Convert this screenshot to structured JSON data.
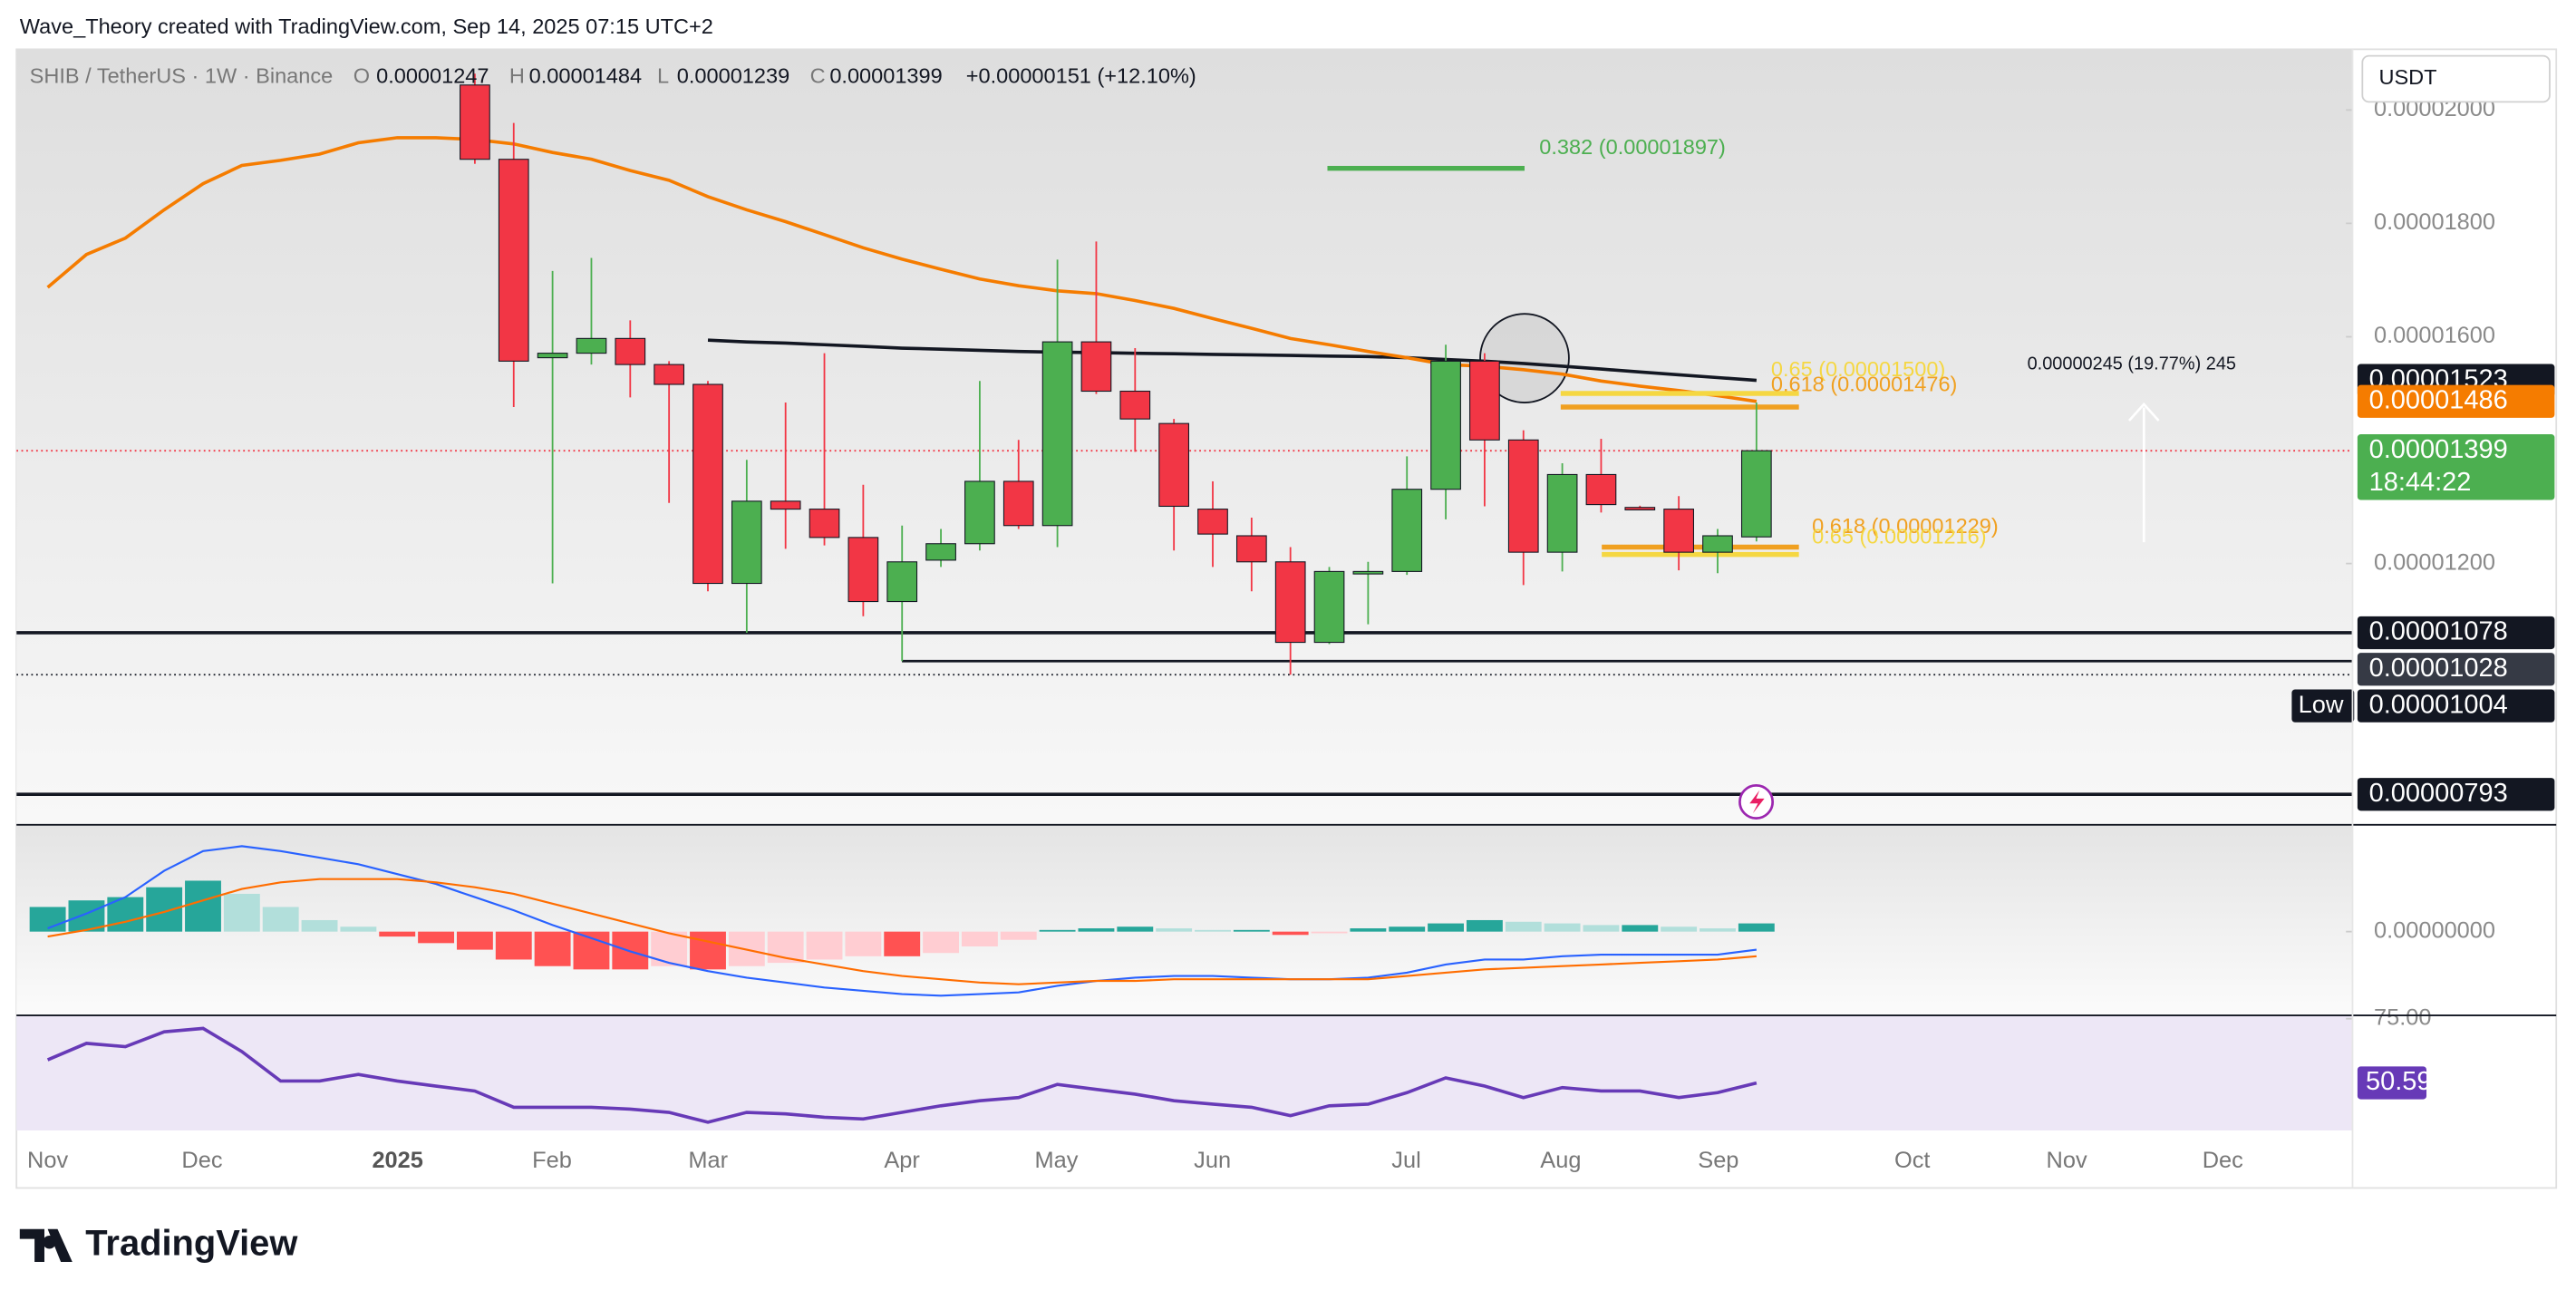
{
  "header": {
    "credit": "Wave_Theory created with TradingView.com, Sep 14, 2025 07:15 UTC+2",
    "currency": "USDT",
    "logo": "TradingView"
  },
  "chart_data": [
    {
      "type": "candlestick",
      "title": "SHIB / TetherUS · 1W · Binance",
      "ohlc_keys": [
        "O",
        "H",
        "L",
        "C"
      ],
      "change": "+0.00000151 (+12.10%)",
      "up_color": "#4caf50",
      "down_color": "#f23645",
      "open": [
        null,
        null,
        null,
        null,
        null,
        null,
        null,
        null,
        null,
        null,
        null,
        2.044e-05,
        1.913e-05,
        1.563e-05,
        1.571e-05,
        1.597e-05,
        1.551e-05,
        1.516e-05,
        1.165e-05,
        1.31e-05,
        1.296e-05,
        1.246e-05,
        1.133e-05,
        1.206e-05,
        1.235e-05,
        1.345e-05,
        1.267e-05,
        1.591e-05,
        1.504e-05,
        1.447e-05,
        1.296e-05,
        1.249e-05,
        1.203e-05,
        1.061e-05,
        1.183e-05,
        1.186e-05,
        1.331e-05,
        1.557e-05,
        1.418e-05,
        1.22e-05,
        1.357e-05,
        1.299e-05,
        1.296e-05,
        1.22e-05,
        1.247e-05
      ],
      "high": [
        null,
        null,
        null,
        null,
        null,
        null,
        null,
        null,
        null,
        null,
        null,
        2.064e-05,
        1.977e-05,
        1.716e-05,
        1.739e-05,
        1.629e-05,
        1.557e-05,
        1.522e-05,
        1.383e-05,
        1.484e-05,
        1.571e-05,
        1.339e-05,
        1.267e-05,
        1.261e-05,
        1.522e-05,
        1.418e-05,
        1.736e-05,
        1.768e-05,
        1.58e-05,
        1.455e-05,
        1.345e-05,
        1.281e-05,
        1.229e-05,
        1.194e-05,
        1.203e-05,
        1.389e-05,
        1.586e-05,
        1.571e-05,
        1.435e-05,
        1.377e-05,
        1.42e-05,
        1.302e-05,
        1.319e-05,
        1.261e-05,
        1.484e-05
      ],
      "low": [
        null,
        null,
        null,
        null,
        null,
        null,
        null,
        null,
        null,
        null,
        null,
        1.905e-05,
        1.476e-05,
        1.165e-05,
        1.551e-05,
        1.493e-05,
        1.307e-05,
        1.151e-05,
        1.078e-05,
        1.226e-05,
        1.232e-05,
        1.107e-05,
        1.028e-05,
        1.194e-05,
        1.223e-05,
        1.261e-05,
        1.229e-05,
        1.499e-05,
        1.397e-05,
        1.223e-05,
        1.194e-05,
        1.151e-05,
        1.004e-05,
        1.058e-05,
        1.093e-05,
        1.18e-05,
        1.278e-05,
        1.301e-05,
        1.162e-05,
        1.186e-05,
        1.29e-05,
        1.296e-05,
        1.188e-05,
        1.183e-05,
        1.239e-05
      ],
      "close": [
        null,
        null,
        null,
        null,
        null,
        null,
        null,
        null,
        null,
        null,
        null,
        1.913e-05,
        1.557e-05,
        1.571e-05,
        1.597e-05,
        1.551e-05,
        1.516e-05,
        1.165e-05,
        1.31e-05,
        1.296e-05,
        1.246e-05,
        1.133e-05,
        1.203e-05,
        1.235e-05,
        1.345e-05,
        1.267e-05,
        1.591e-05,
        1.504e-05,
        1.455e-05,
        1.301e-05,
        1.252e-05,
        1.203e-05,
        1.061e-05,
        1.186e-05,
        1.186e-05,
        1.331e-05,
        1.557e-05,
        1.418e-05,
        1.22e-05,
        1.357e-05,
        1.304e-05,
        1.297e-05,
        1.22e-05,
        1.249e-05,
        1.399e-05
      ],
      "ema": {
        "color": "#f57c00",
        "values": [
          1.687e-05,
          1.745e-05,
          1.774e-05,
          1.824e-05,
          1.87e-05,
          1.902e-05,
          1.911e-05,
          1.922e-05,
          1.942e-05,
          1.951e-05,
          1.951e-05,
          1.948e-05,
          1.94e-05,
          1.925e-05,
          1.913e-05,
          1.893e-05,
          1.876e-05,
          1.847e-05,
          1.824e-05,
          1.803e-05,
          1.78e-05,
          1.757e-05,
          1.737e-05,
          1.719e-05,
          1.702e-05,
          1.69e-05,
          1.681e-05,
          1.676e-05,
          1.664e-05,
          1.65e-05,
          1.632e-05,
          1.615e-05,
          1.597e-05,
          1.586e-05,
          1.574e-05,
          1.563e-05,
          1.551e-05,
          1.548e-05,
          1.542e-05,
          1.534e-05,
          1.522e-05,
          1.513e-05,
          1.505e-05,
          1.496e-05,
          1.486e-05
        ]
      },
      "ma": {
        "color": "#131722",
        "values": [
          null,
          null,
          null,
          null,
          null,
          null,
          null,
          null,
          null,
          null,
          null,
          null,
          null,
          null,
          null,
          null,
          null,
          1.594e-05,
          1.591e-05,
          1.589e-05,
          1.586e-05,
          1.583e-05,
          1.58e-05,
          1.578e-05,
          1.576e-05,
          1.574e-05,
          1.573e-05,
          1.572e-05,
          1.571e-05,
          1.57e-05,
          1.569e-05,
          1.568e-05,
          1.567e-05,
          1.566e-05,
          1.565e-05,
          1.563e-05,
          1.56e-05,
          1.557e-05,
          1.553e-05,
          1.548e-05,
          1.543e-05,
          1.538e-05,
          1.533e-05,
          1.528e-05,
          1.523e-05
        ]
      },
      "levels": [
        1.078e-05,
        1.028e-05,
        7.93e-06
      ],
      "low_mark": 1.004e-05,
      "low_label": "Low",
      "countdown": "18:44:22",
      "fibs": [
        {
          "label": "0.382 (0.00001897)",
          "price": 1.897e-05,
          "color": "#4caf50"
        },
        {
          "label": "0.65 (0.00001500)",
          "price": 1.5e-05,
          "color": "#f5d742"
        },
        {
          "label": "0.618 (0.00001476)",
          "price": 1.476e-05,
          "color": "#f0a020"
        },
        {
          "label": "0.618 (0.00001229)",
          "price": 1.229e-05,
          "color": "#f0a020"
        },
        {
          "label": "0.65 (0.00001216)",
          "price": 1.216e-05,
          "color": "#f5d742"
        }
      ],
      "measure": "0.00000245 (19.77%) 245",
      "xlabels": [
        "Nov",
        "Dec",
        "2025",
        "Feb",
        "Mar",
        "Apr",
        "May",
        "Jun",
        "Jul",
        "Aug",
        "Sep",
        "Oct",
        "Nov",
        "Dec"
      ],
      "ylim": [
        7.45e-06,
        2.107e-05
      ],
      "yticks": [
        {
          "value": 1.2e-05,
          "label": "0.00001200"
        },
        {
          "value": 1.6e-05,
          "label": "0.00001600"
        },
        {
          "value": 1.8e-05,
          "label": "0.00001800"
        },
        {
          "value": 2e-05,
          "label": "0.00002000"
        }
      ]
    },
    {
      "type": "macd",
      "hist": [
        1.5e-08,
        1.9e-08,
        2.1e-08,
        2.7e-08,
        3.1e-08,
        2.3e-08,
        1.5e-08,
        7e-09,
        3e-09,
        -3e-09,
        -7e-09,
        -1.1e-08,
        -1.7e-08,
        -2.1e-08,
        -2.3e-08,
        -2.3e-08,
        -2.1e-08,
        -2.3e-08,
        -2.1e-08,
        -1.9e-08,
        -1.7e-08,
        -1.5e-08,
        -1.5e-08,
        -1.3e-08,
        -9e-09,
        -5e-09,
        1e-09,
        2e-09,
        3e-09,
        2e-09,
        1e-09,
        1e-09,
        -2e-09,
        -1e-09,
        2e-09,
        3e-09,
        5e-09,
        7e-09,
        6e-09,
        5e-09,
        4e-09,
        4e-09,
        3e-09,
        2e-09,
        5e-09
      ],
      "macd": {
        "color": "#2962ff",
        "values": [
          2e-09,
          1.1e-08,
          2.1e-08,
          3.7e-08,
          4.9e-08,
          5.2e-08,
          4.9e-08,
          4.5e-08,
          4.1e-08,
          3.5e-08,
          2.9e-08,
          2.1e-08,
          1.3e-08,
          4e-09,
          -4e-09,
          -1.2e-08,
          -1.9e-08,
          -2.4e-08,
          -2.8e-08,
          -3.1e-08,
          -3.4e-08,
          -3.6e-08,
          -3.8e-08,
          -3.9e-08,
          -3.8e-08,
          -3.7e-08,
          -3.3e-08,
          -3e-08,
          -2.8e-08,
          -2.7e-08,
          -2.7e-08,
          -2.8e-08,
          -2.9e-08,
          -2.9e-08,
          -2.8e-08,
          -2.5e-08,
          -2e-08,
          -1.7e-08,
          -1.7e-08,
          -1.5e-08,
          -1.4e-08,
          -1.4e-08,
          -1.4e-08,
          -1.4e-08,
          -1.1e-08
        ]
      },
      "signal": {
        "color": "#ff6d00",
        "values": [
          -3e-09,
          1e-09,
          6e-09,
          1.2e-08,
          1.9e-08,
          2.6e-08,
          3e-08,
          3.2e-08,
          3.2e-08,
          3.2e-08,
          3e-08,
          2.7e-08,
          2.3e-08,
          1.7e-08,
          1.1e-08,
          5e-09,
          -1e-09,
          -6e-09,
          -1.1e-08,
          -1.6e-08,
          -2e-08,
          -2.4e-08,
          -2.7e-08,
          -2.9e-08,
          -3.1e-08,
          -3.2e-08,
          -3.1e-08,
          -3e-08,
          -3e-08,
          -2.9e-08,
          -2.9e-08,
          -2.9e-08,
          -2.9e-08,
          -2.9e-08,
          -2.9e-08,
          -2.7e-08,
          -2.5e-08,
          -2.3e-08,
          -2.2e-08,
          -2.1e-08,
          -2e-08,
          -1.9e-08,
          -1.8e-08,
          -1.7e-08,
          -1.5e-08
        ]
      },
      "ylim": [
        -5.1e-08,
        6.5e-08
      ],
      "yticks": [
        {
          "value": 0,
          "label": "0.00000000"
        }
      ]
    },
    {
      "type": "line",
      "color": "#673ab7",
      "values": [
        59.4,
        65.6,
        64.4,
        70.0,
        71.3,
        62.5,
        51.3,
        51.3,
        53.8,
        51.3,
        49.4,
        47.5,
        41.3,
        41.3,
        41.3,
        40.6,
        39.4,
        35.6,
        39.4,
        38.8,
        37.5,
        36.9,
        39.4,
        41.9,
        43.8,
        45.0,
        50.0,
        48.1,
        46.3,
        43.8,
        42.5,
        41.3,
        38.1,
        41.9,
        42.5,
        46.9,
        52.5,
        49.4,
        45.0,
        48.8,
        47.5,
        47.5,
        45.0,
        46.9,
        50.59
      ],
      "ylim": [
        32.5,
        76.25
      ],
      "yticks": [
        {
          "value": 75,
          "label": "75.00"
        }
      ]
    }
  ]
}
